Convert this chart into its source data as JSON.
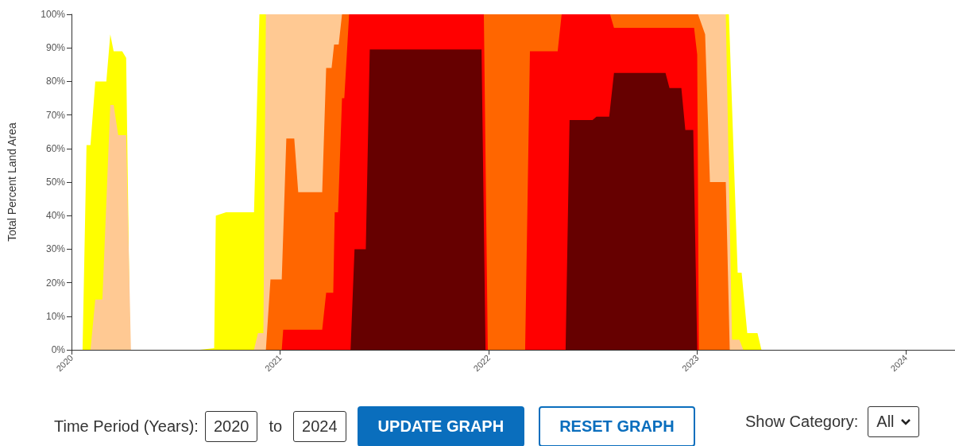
{
  "chart_data": {
    "type": "area",
    "ylabel": "Total Percent Land Area",
    "xlim": [
      2020,
      2024.236
    ],
    "xticks": [
      2020,
      2021,
      2022,
      2023,
      2024
    ],
    "ylim": [
      0,
      100
    ],
    "yticks": [
      {
        "value": 0,
        "label": "0%"
      },
      {
        "value": 10,
        "label": "10%"
      },
      {
        "value": 20,
        "label": "20%"
      },
      {
        "value": 30,
        "label": "30%"
      },
      {
        "value": 40,
        "label": "40%"
      },
      {
        "value": 50,
        "label": "50%"
      },
      {
        "value": 60,
        "label": "60%"
      },
      {
        "value": 70,
        "label": "70%"
      },
      {
        "value": 80,
        "label": "80%"
      },
      {
        "value": 90,
        "label": "90%"
      },
      {
        "value": 100,
        "label": "100%"
      }
    ],
    "grid": false,
    "marker": "none",
    "series": [
      {
        "color": "#ffff00",
        "x": [
          2020,
          2020.053,
          2020.072,
          2020.091,
          2020.114,
          2020.167,
          2020.186,
          2020.202,
          2020.243,
          2020.262,
          2020.281,
          2020.616,
          2020.684,
          2020.692,
          2020.741,
          2020.875,
          2020.901,
          2023.152,
          2023.194,
          2023.213,
          2023.24,
          2023.289,
          2023.308,
          2024.236
        ],
        "values": [
          0,
          0,
          61,
          61,
          80,
          80,
          94,
          89,
          89,
          87,
          0,
          0,
          0.5,
          40,
          41,
          41,
          100,
          100,
          23,
          23,
          5,
          5,
          0,
          0
        ]
      },
      {
        "color": "#ffc993",
        "x": [
          2020.091,
          2020.114,
          2020.148,
          2020.186,
          2020.202,
          2020.224,
          2020.262,
          2020.285,
          2020.875,
          2020.894,
          2020.92,
          2020.932,
          2023.137,
          2023.167,
          2023.202,
          2023.221
        ],
        "values": [
          0,
          15,
          15,
          73,
          73,
          64,
          64,
          0,
          0,
          5,
          5,
          100,
          100,
          3,
          3,
          0
        ]
      },
      {
        "color": "#ff6600",
        "x": [
          2020.932,
          2020.954,
          2021.008,
          2021.03,
          2021.068,
          2021.087,
          2021.202,
          2021.221,
          2021.247,
          2021.259,
          2021.281,
          2021.297,
          2023.004,
          2023.038,
          2023.061,
          2023.137,
          2023.156
        ],
        "values": [
          0,
          21,
          21,
          63,
          63,
          47,
          47,
          84,
          84,
          91,
          91,
          100,
          100,
          94,
          50,
          50,
          0
        ]
      },
      {
        "color": "#ff0000",
        "x": [
          2021.008,
          2021.015,
          2021.202,
          2021.221,
          2021.255,
          2021.262,
          2021.278,
          2021.297,
          2021.308,
          2021.331,
          2021.977,
          2021.996,
          2022.175,
          2022.198,
          2022.331,
          2022.35,
          2022.582,
          2022.601,
          2022.985,
          2023.0,
          2023.008
        ],
        "values": [
          0,
          6,
          6,
          17,
          17,
          41,
          41,
          75,
          75,
          100,
          100,
          0,
          0,
          89,
          89,
          100,
          100,
          96,
          96,
          88,
          0
        ]
      },
      {
        "color": "#660000",
        "x": [
          2021.338,
          2021.357,
          2021.411,
          2021.43,
          2021.966,
          2021.985,
          2022.369,
          2022.388,
          2022.498,
          2022.517,
          2022.578,
          2022.601,
          2022.848,
          2022.867,
          2022.924,
          2022.943,
          2022.981,
          2023.0
        ],
        "values": [
          0,
          30,
          30,
          89.5,
          89.5,
          0,
          0,
          68.5,
          68.5,
          69.5,
          69.5,
          82.5,
          82.5,
          78,
          78,
          65.5,
          65.5,
          0
        ]
      }
    ],
    "annotations": [
      "Time Period (Years):",
      "to",
      "2020",
      "2024",
      "UPDATE GRAPH",
      "RESET GRAPH",
      "Show Category:",
      "All"
    ]
  }
}
